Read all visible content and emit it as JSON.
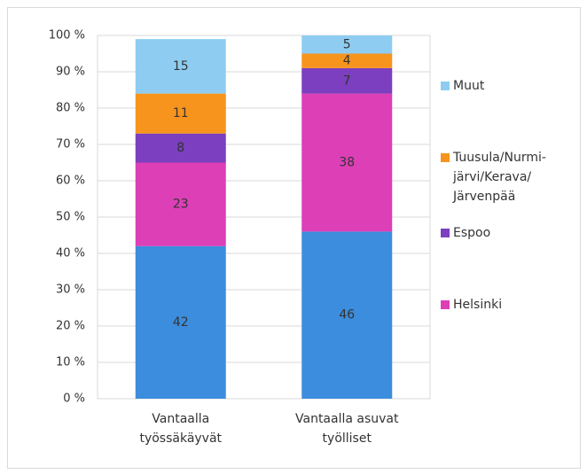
{
  "chart_data": {
    "type": "stacked_bar",
    "categories": [
      "Vantaalla\ntyössäkäyvät",
      "Vantaalla asuvat\ntyölliset"
    ],
    "series": [
      {
        "color": "#3c8ddd",
        "values": [
          42,
          46
        ]
      },
      {
        "name": "Helsinki",
        "color": "#dc3fb6",
        "values": [
          23,
          38
        ]
      },
      {
        "name": "Espoo",
        "color": "#7b3fbf",
        "values": [
          8,
          7
        ]
      },
      {
        "name": "Tuusula/Nurmi-\njärvi/Kerava/\nJärvenpää",
        "color": "#f7941e",
        "values": [
          11,
          4
        ]
      },
      {
        "name": "Muut",
        "color": "#8ecdf1",
        "values": [
          15,
          5
        ]
      }
    ],
    "ylim": [
      0,
      100
    ],
    "yticks": [
      {
        "value": 0,
        "label": "0 %"
      },
      {
        "value": 10,
        "label": "10 %"
      },
      {
        "value": 20,
        "label": "20 %"
      },
      {
        "value": 30,
        "label": "30 %"
      },
      {
        "value": 40,
        "label": "40 %"
      },
      {
        "value": 50,
        "label": "50 %"
      },
      {
        "value": 60,
        "label": "60 %"
      },
      {
        "value": 70,
        "label": "70 %"
      },
      {
        "value": 80,
        "label": "80 %"
      },
      {
        "value": 90,
        "label": "90 %"
      },
      {
        "value": 100,
        "label": "100 %"
      }
    ],
    "grid": true
  }
}
